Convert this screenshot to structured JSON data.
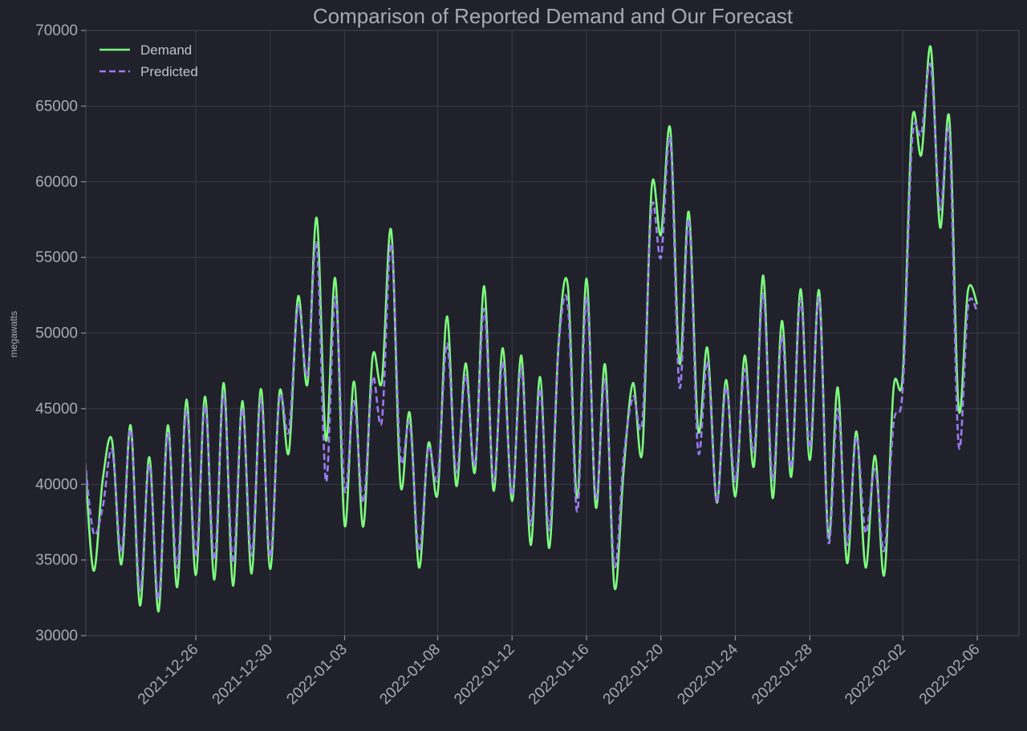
{
  "chart_data": {
    "type": "line",
    "title": "Comparison of Reported Demand and Our Forecast",
    "xlabel": "",
    "ylabel": "megawatts",
    "xlim": [
      "2021-12-22",
      "2022-02-06"
    ],
    "ylim": [
      30000,
      70000
    ],
    "yticks": [
      30000,
      35000,
      40000,
      45000,
      50000,
      55000,
      60000,
      65000,
      70000
    ],
    "xticks": [
      "2021-12-26",
      "2021-12-30",
      "2022-01-03",
      "2022-01-08",
      "2022-01-12",
      "2022-01-16",
      "2022-01-20",
      "2022-01-24",
      "2022-01-28",
      "2022-02-02",
      "2022-02-06"
    ],
    "grid": true,
    "legend_position": "top-left",
    "series": [
      {
        "name": "Demand",
        "color": "#7dfa7d",
        "style": "solid",
        "x": [
          "2021-12-20",
          "2021-12-20 12:00",
          "2021-12-21",
          "2021-12-21 12:00",
          "2021-12-22",
          "2021-12-22 12:00",
          "2021-12-23",
          "2021-12-23 12:00",
          "2021-12-24",
          "2021-12-24 12:00",
          "2021-12-25",
          "2021-12-25 12:00",
          "2021-12-26",
          "2021-12-26 12:00",
          "2021-12-27",
          "2021-12-27 12:00",
          "2021-12-28",
          "2021-12-28 12:00",
          "2021-12-29",
          "2021-12-29 12:00",
          "2021-12-30",
          "2021-12-30 12:00",
          "2021-12-31",
          "2021-12-31 12:00",
          "2022-01-01",
          "2022-01-01 12:00",
          "2022-01-02",
          "2022-01-02 12:00",
          "2022-01-03",
          "2022-01-03 12:00",
          "2022-01-04",
          "2022-01-04 12:00",
          "2022-01-05",
          "2022-01-05 12:00",
          "2022-01-06",
          "2022-01-06 12:00",
          "2022-01-07",
          "2022-01-07 12:00",
          "2022-01-08",
          "2022-01-08 12:00",
          "2022-01-09",
          "2022-01-09 12:00",
          "2022-01-10",
          "2022-01-10 12:00",
          "2022-01-11",
          "2022-01-11 12:00",
          "2022-01-12",
          "2022-01-12 12:00",
          "2022-01-13",
          "2022-01-13 12:00",
          "2022-01-14",
          "2022-01-14 12:00",
          "2022-01-15",
          "2022-01-15 12:00",
          "2022-01-16",
          "2022-01-16 12:00",
          "2022-01-17",
          "2022-01-17 12:00",
          "2022-01-18",
          "2022-01-18 12:00",
          "2022-01-19",
          "2022-01-19 12:00",
          "2022-01-20",
          "2022-01-20 12:00",
          "2022-01-21",
          "2022-01-21 12:00",
          "2022-01-22",
          "2022-01-22 12:00",
          "2022-01-23",
          "2022-01-23 12:00",
          "2022-01-24",
          "2022-01-24 12:00",
          "2022-01-25",
          "2022-01-25 12:00",
          "2022-01-26",
          "2022-01-26 12:00",
          "2022-01-27",
          "2022-01-27 12:00",
          "2022-01-28",
          "2022-01-28 12:00",
          "2022-01-29",
          "2022-01-29 12:00",
          "2022-01-30",
          "2022-01-30 12:00",
          "2022-01-31",
          "2022-01-31 12:00",
          "2022-02-01",
          "2022-02-01 12:00",
          "2022-02-02",
          "2022-02-02 12:00",
          "2022-02-03",
          "2022-02-03 12:00",
          "2022-02-04",
          "2022-02-04 12:00",
          "2022-02-05",
          "2022-02-05 12:00",
          "2022-02-06"
        ],
        "values": [
          42500,
          34300,
          40300,
          42900,
          34700,
          43900,
          32000,
          41800,
          31600,
          43900,
          33200,
          45600,
          34000,
          45800,
          33700,
          46700,
          33300,
          45500,
          34100,
          46300,
          34400,
          46100,
          42100,
          52400,
          46600,
          57600,
          42900,
          53600,
          37300,
          46800,
          37200,
          48400,
          46800,
          56800,
          40000,
          44700,
          34500,
          42700,
          39400,
          51100,
          39900,
          48000,
          40800,
          53100,
          39600,
          49000,
          38900,
          48500,
          36000,
          47100,
          35800,
          49300,
          53100,
          39100,
          53600,
          38500,
          47900,
          33200,
          41000,
          46700,
          42200,
          59600,
          56500,
          63500,
          48000,
          58000,
          43600,
          49000,
          38800,
          46900,
          39200,
          48500,
          41200,
          53800,
          39100,
          50800,
          40500,
          52900,
          41600,
          52800,
          36500,
          46400,
          34800,
          43500,
          34500,
          41900,
          34000,
          46300,
          47300,
          64000,
          61800,
          68900,
          57000,
          64200,
          45000,
          52800,
          51900
        ]
      },
      {
        "name": "Predicted",
        "color": "#9a7cf0",
        "style": "dashed",
        "x": [
          "2021-12-20",
          "2021-12-20 12:00",
          "2021-12-21",
          "2021-12-21 12:00",
          "2021-12-22",
          "2021-12-22 12:00",
          "2021-12-23",
          "2021-12-23 12:00",
          "2021-12-24",
          "2021-12-24 12:00",
          "2021-12-25",
          "2021-12-25 12:00",
          "2021-12-26",
          "2021-12-26 12:00",
          "2021-12-27",
          "2021-12-27 12:00",
          "2021-12-28",
          "2021-12-28 12:00",
          "2021-12-29",
          "2021-12-29 12:00",
          "2021-12-30",
          "2021-12-30 12:00",
          "2021-12-31",
          "2021-12-31 12:00",
          "2022-01-01",
          "2022-01-01 12:00",
          "2022-01-02",
          "2022-01-02 12:00",
          "2022-01-03",
          "2022-01-03 12:00",
          "2022-01-04",
          "2022-01-04 12:00",
          "2022-01-05",
          "2022-01-05 12:00",
          "2022-01-06",
          "2022-01-06 12:00",
          "2022-01-07",
          "2022-01-07 12:00",
          "2022-01-08",
          "2022-01-08 12:00",
          "2022-01-09",
          "2022-01-09 12:00",
          "2022-01-10",
          "2022-01-10 12:00",
          "2022-01-11",
          "2022-01-11 12:00",
          "2022-01-12",
          "2022-01-12 12:00",
          "2022-01-13",
          "2022-01-13 12:00",
          "2022-01-14",
          "2022-01-14 12:00",
          "2022-01-15",
          "2022-01-15 12:00",
          "2022-01-16",
          "2022-01-16 12:00",
          "2022-01-17",
          "2022-01-17 12:00",
          "2022-01-18",
          "2022-01-18 12:00",
          "2022-01-19",
          "2022-01-19 12:00",
          "2022-01-20",
          "2022-01-20 12:00",
          "2022-01-21",
          "2022-01-21 12:00",
          "2022-01-22",
          "2022-01-22 12:00",
          "2022-01-23",
          "2022-01-23 12:00",
          "2022-01-24",
          "2022-01-24 12:00",
          "2022-01-25",
          "2022-01-25 12:00",
          "2022-01-26",
          "2022-01-26 12:00",
          "2022-01-27",
          "2022-01-27 12:00",
          "2022-01-28",
          "2022-01-28 12:00",
          "2022-01-29",
          "2022-01-29 12:00",
          "2022-01-30",
          "2022-01-30 12:00",
          "2022-01-31",
          "2022-01-31 12:00",
          "2022-02-01",
          "2022-02-01 12:00",
          "2022-02-02",
          "2022-02-02 12:00",
          "2022-02-03",
          "2022-02-03 12:00",
          "2022-02-04",
          "2022-02-04 12:00",
          "2022-02-05",
          "2022-02-05 12:00",
          "2022-02-06"
        ],
        "values": [
          42200,
          36800,
          38500,
          42300,
          35500,
          43600,
          33000,
          41300,
          32400,
          43400,
          34500,
          44900,
          35200,
          45200,
          35000,
          46000,
          34800,
          45000,
          35300,
          45600,
          35200,
          45700,
          43500,
          51800,
          47200,
          55900,
          40200,
          52400,
          39600,
          45500,
          38800,
          47000,
          44200,
          55900,
          41800,
          44000,
          35600,
          42400,
          40400,
          49300,
          40800,
          47200,
          41300,
          51600,
          40200,
          48100,
          39300,
          47700,
          37300,
          46300,
          37000,
          49100,
          51800,
          38200,
          52400,
          39100,
          46900,
          34600,
          41800,
          45800,
          44200,
          58300,
          55000,
          62800,
          46400,
          57500,
          42200,
          48100,
          38800,
          46400,
          40200,
          47600,
          42200,
          52600,
          40300,
          49800,
          41100,
          52200,
          42400,
          52300,
          36200,
          45000,
          36000,
          43100,
          36800,
          41000,
          35600,
          44000,
          46400,
          62700,
          63200,
          67700,
          58200,
          63100,
          42600,
          51700,
          51400
        ]
      }
    ]
  }
}
